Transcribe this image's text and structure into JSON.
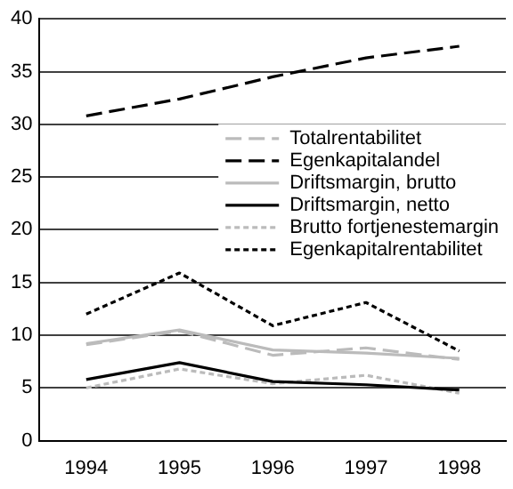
{
  "chart_data": {
    "type": "line",
    "categories": [
      "1994",
      "1995",
      "1996",
      "1997",
      "1998"
    ],
    "ylim": [
      0,
      40
    ],
    "yticks": [
      0,
      5,
      10,
      15,
      20,
      25,
      30,
      35,
      40
    ],
    "grid": "y",
    "legend": "right",
    "marker": "none",
    "series": [
      {
        "name": "Totalrentabilitet",
        "color": "#bbbbbb",
        "line_style": "dashed",
        "values": [
          9.1,
          10.4,
          8.1,
          8.8,
          7.7
        ]
      },
      {
        "name": "Egenkapitalandel",
        "color": "#000000",
        "line_style": "dashed",
        "values": [
          30.8,
          32.4,
          34.5,
          36.3,
          37.4
        ]
      },
      {
        "name": "Driftsmargin, brutto",
        "color": "#bbbbbb",
        "line_style": "solid",
        "values": [
          9.2,
          10.5,
          8.6,
          8.3,
          7.8
        ]
      },
      {
        "name": "Driftsmargin, netto",
        "color": "#000000",
        "line_style": "solid",
        "values": [
          5.8,
          7.4,
          5.6,
          5.3,
          4.8
        ]
      },
      {
        "name": "Brutto fortjenestemargin",
        "color": "#bbbbbb",
        "line_style": "dotted",
        "values": [
          5.0,
          6.8,
          5.4,
          6.2,
          4.5
        ]
      },
      {
        "name": "Egenkapitalrentabilitet",
        "color": "#000000",
        "line_style": "dotted",
        "values": [
          12.0,
          15.9,
          10.9,
          13.1,
          8.5
        ]
      }
    ]
  }
}
